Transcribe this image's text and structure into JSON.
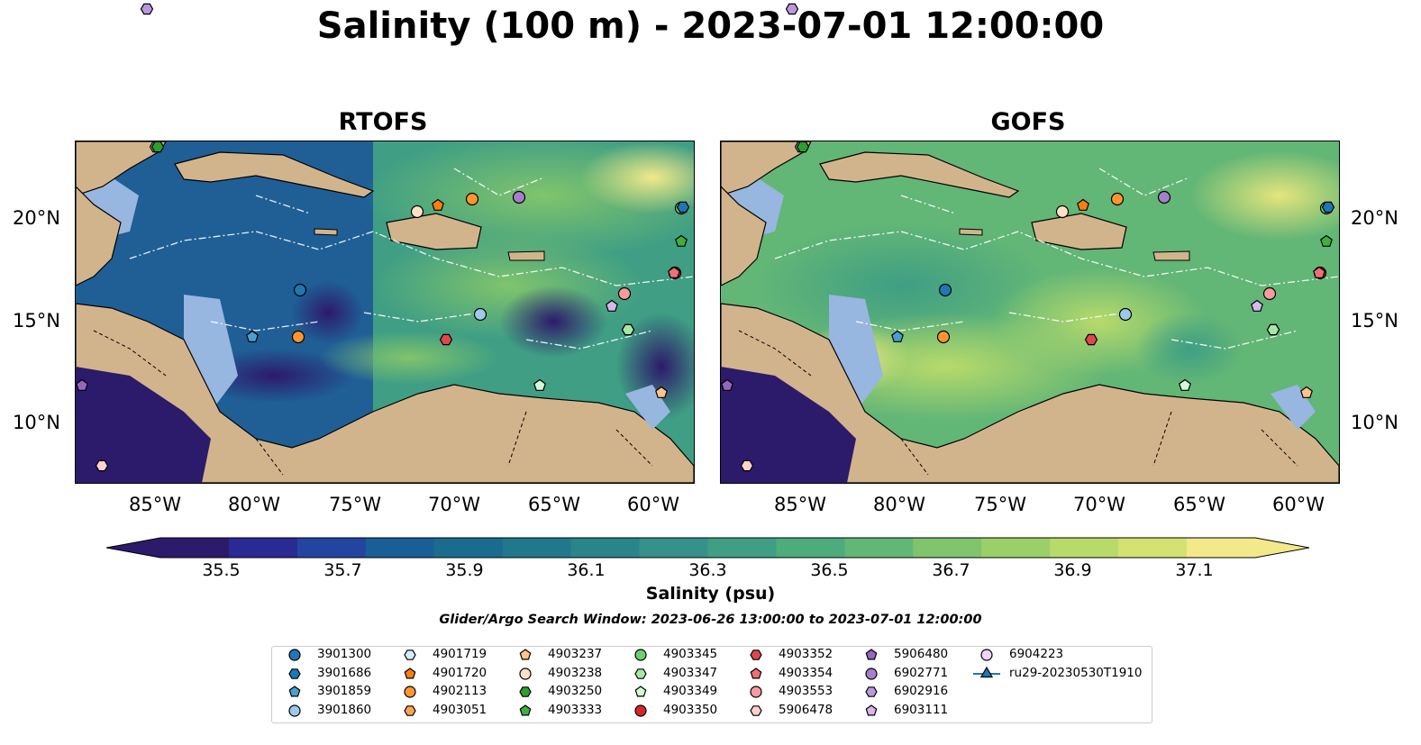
{
  "title": "Salinity (100 m) - 2023-07-01 12:00:00",
  "panels": [
    {
      "title": "RTOFS"
    },
    {
      "title": "GOFS"
    }
  ],
  "axes": {
    "lat_labels": [
      "20°N",
      "15°N",
      "10°N"
    ],
    "lon_labels": [
      "85°W",
      "80°W",
      "75°W",
      "70°W",
      "65°W",
      "60°W"
    ]
  },
  "colorbar": {
    "ticks": [
      "35.5",
      "35.7",
      "35.9",
      "36.1",
      "36.3",
      "36.5",
      "36.7",
      "36.9",
      "37.1"
    ],
    "label": "Salinity (psu)",
    "range": [
      35.4,
      37.2
    ],
    "colors": [
      "#2c1a6b",
      "#2a2a95",
      "#23459f",
      "#1a5e97",
      "#1b6b8f",
      "#21788c",
      "#2a858a",
      "#35918a",
      "#3f9e84",
      "#4dab7c",
      "#62b676",
      "#80c46c",
      "#9bcf69",
      "#b8da6b",
      "#d3e271",
      "#f2e98a"
    ]
  },
  "search_window": "Glider/Argo Search Window: 2023-06-26 13:00:00 to 2023-07-01 12:00:00",
  "legend": {
    "items": [
      {
        "label": "3901300",
        "marker": "circle",
        "color": "#1f77b4"
      },
      {
        "label": "3901686",
        "marker": "hexagon",
        "color": "#1f77b4"
      },
      {
        "label": "3901859",
        "marker": "pentagon",
        "color": "#4a9fd0"
      },
      {
        "label": "3901860",
        "marker": "circle",
        "color": "#9ecae9"
      },
      {
        "label": "4901719",
        "marker": "hexagon",
        "color": "#d6ecfa"
      },
      {
        "label": "4901720",
        "marker": "pentagon",
        "color": "#ff7f0e"
      },
      {
        "label": "4902113",
        "marker": "circle",
        "color": "#ff9530"
      },
      {
        "label": "4903051",
        "marker": "hexagon",
        "color": "#ffa552"
      },
      {
        "label": "4903237",
        "marker": "pentagon",
        "color": "#ffc489"
      },
      {
        "label": "4903238",
        "marker": "circle",
        "color": "#ffe2c6"
      },
      {
        "label": "4903250",
        "marker": "hexagon",
        "color": "#2ca02c"
      },
      {
        "label": "4903333",
        "marker": "pentagon",
        "color": "#3fb03f"
      },
      {
        "label": "4903345",
        "marker": "circle",
        "color": "#6fcf6f"
      },
      {
        "label": "4903347",
        "marker": "hexagon",
        "color": "#a5e8a5"
      },
      {
        "label": "4903349",
        "marker": "pentagon",
        "color": "#d6f8d6"
      },
      {
        "label": "4903350",
        "marker": "circle",
        "color": "#d62728"
      },
      {
        "label": "4903352",
        "marker": "hexagon",
        "color": "#e0474a"
      },
      {
        "label": "4903354",
        "marker": "pentagon",
        "color": "#ee6f74"
      },
      {
        "label": "4903553",
        "marker": "circle",
        "color": "#f79b9c"
      },
      {
        "label": "5906478",
        "marker": "hexagon",
        "color": "#fdd0cc"
      },
      {
        "label": "5906480",
        "marker": "pentagon",
        "color": "#9467bd"
      },
      {
        "label": "6902771",
        "marker": "circle",
        "color": "#a57fcc"
      },
      {
        "label": "6902916",
        "marker": "hexagon",
        "color": "#bb98dd"
      },
      {
        "label": "6903111",
        "marker": "pentagon",
        "color": "#d8b6ee"
      },
      {
        "label": "6904223",
        "marker": "circle",
        "color": "#ecd4fa"
      },
      {
        "label": "ru29-20230530T1910",
        "marker": "triangle-line",
        "color": "#1f77b4"
      }
    ]
  }
}
